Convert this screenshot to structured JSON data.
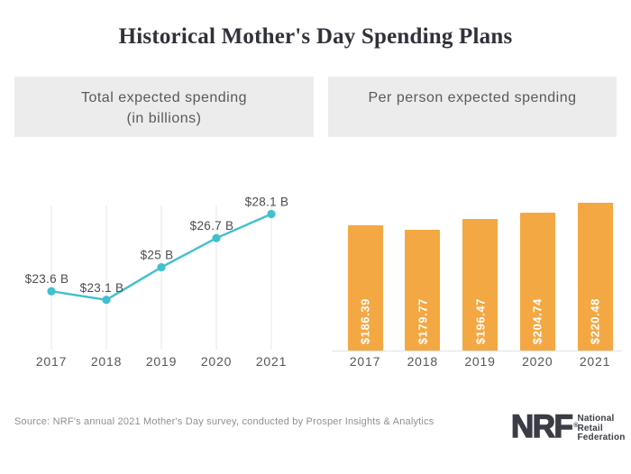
{
  "title": "Historical Mother's Day Spending Plans",
  "panels": {
    "left_header_line1": "Total expected spending",
    "left_header_line2": "(in billions)",
    "right_header": "Per person expected spending"
  },
  "chart_data": [
    {
      "type": "line",
      "title": "Total expected spending (in billions)",
      "categories": [
        "2017",
        "2018",
        "2019",
        "2020",
        "2021"
      ],
      "values": [
        23.6,
        23.1,
        25,
        26.7,
        28.1
      ],
      "point_labels": [
        "$23.6 B",
        "$23.1 B",
        "$25 B",
        "$26.7 B",
        "$28.1 B"
      ],
      "ylim": [
        20.2,
        28.6
      ],
      "grid": "vertical-only",
      "legend": "none",
      "line_color": "#41c0cd"
    },
    {
      "type": "bar",
      "title": "Per person expected spending",
      "categories": [
        "2017",
        "2018",
        "2019",
        "2020",
        "2021"
      ],
      "values": [
        186.39,
        179.77,
        196.47,
        204.74,
        220.48
      ],
      "bar_labels": [
        "$186.39",
        "$179.77",
        "$196.47",
        "$204.74",
        "$220.48"
      ],
      "ylim": [
        0,
        267
      ],
      "grid": "off",
      "legend": "none",
      "bar_color": "#f4a843"
    }
  ],
  "footer": {
    "source": "Source: NRF's annual 2021 Mother's Day survey, conducted by Prosper Insights & Analytics",
    "logo": {
      "abbr": "NRF",
      "registered": "®",
      "org_line1": "National",
      "org_line2": "Retail",
      "org_line3": "Federation"
    }
  },
  "colors": {
    "accent_teal": "#41c0cd",
    "accent_orange": "#f4a843",
    "header_bg": "#ececec",
    "header_text": "#58595b",
    "title_text": "#30313a",
    "axis_text": "#55565a",
    "value_text": "#4b4c52",
    "gridline": "#e7e7e7",
    "source_text": "#8f9094",
    "logo_color": "#3b3c46"
  }
}
